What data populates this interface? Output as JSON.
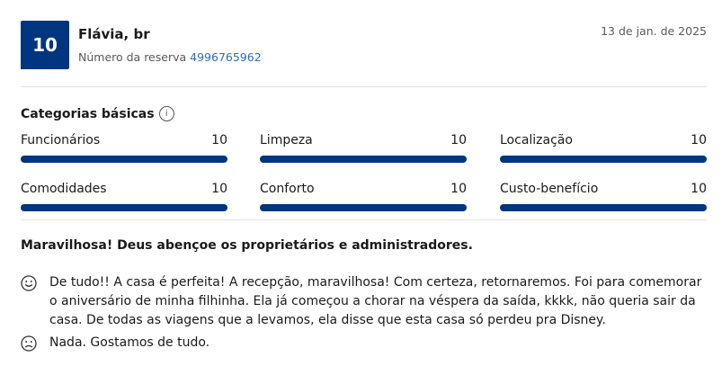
{
  "score": "10",
  "reviewer": {
    "name": "Flávia, br",
    "booking_label": "Número da reserva",
    "booking_number": "4996765962"
  },
  "date": "13 de jan. de 2025",
  "categories": {
    "title": "Categorias básicas",
    "info_icon": "info-icon",
    "items": [
      {
        "label": "Funcionários",
        "value": "10",
        "fraction": 1.0
      },
      {
        "label": "Limpeza",
        "value": "10",
        "fraction": 1.0
      },
      {
        "label": "Localização",
        "value": "10",
        "fraction": 1.0
      },
      {
        "label": "Comodidades",
        "value": "10",
        "fraction": 1.0
      },
      {
        "label": "Conforto",
        "value": "10",
        "fraction": 1.0
      },
      {
        "label": "Custo-benefício",
        "value": "10",
        "fraction": 1.0
      }
    ]
  },
  "review": {
    "title": "Maravilhosa! Deus abençoe os proprietários e administradores.",
    "positive": "De tudo!! A casa é perfeita! A recepção, maravilhosa! Com certeza, retornaremos. Foi para comemorar o aniversário de minha filhinha. Ela já começou a chorar na véspera da saída, kkkk, não queria sair da casa. De todas as viagens que a levamos, ela disse que esta casa só perdeu pra Disney.",
    "negative": "Nada. Gostamos de tudo.",
    "positive_icon": "smile-icon",
    "negative_icon": "frown-icon",
    "accent": "#003580"
  }
}
